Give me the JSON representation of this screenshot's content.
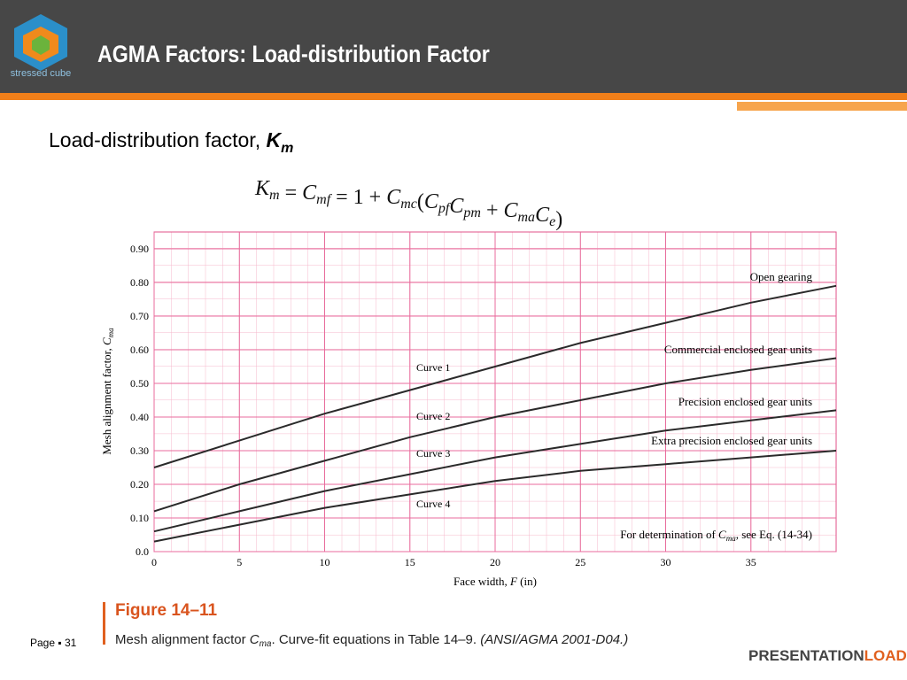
{
  "slide": {
    "title": "AGMA Factors: Load-distribution Factor",
    "logo_text": "stressed cube",
    "heading": {
      "text": "Load-distribution factor, ",
      "symbol": "K",
      "sub": "m"
    },
    "equation": [
      {
        "text": "K",
        "sub": "m"
      },
      {
        "text": " = "
      },
      {
        "text": "C",
        "sub": "mf"
      },
      {
        "text": " = 1 + "
      },
      {
        "text": "C",
        "sub": "mc"
      },
      {
        "text": "("
      },
      {
        "text": "C",
        "sub": "pf"
      },
      {
        "text": "C",
        "sub": "pm"
      },
      {
        "text": " + "
      },
      {
        "text": "C",
        "sub": "ma"
      },
      {
        "text": "C",
        "sub": "e"
      },
      {
        "text": ")"
      }
    ],
    "figure_label": "Figure 14–11",
    "caption": {
      "prefix": "Mesh alignment factor ",
      "symbol": "C",
      "sub": "ma",
      "suffix": ". Curve-fit equations in Table 14–9. ",
      "source": "(ANSI/AGMA 2001-D04.)"
    },
    "page": "Page ▪ 31",
    "brand": {
      "first": "PRESENTATION",
      "second": "LOAD"
    }
  },
  "chart_data": {
    "type": "line",
    "x_label": {
      "text": "Face width, ",
      "symbol": "F",
      "suffix": " (in)"
    },
    "y_label": {
      "text": "Mesh alignment factor, ",
      "symbol": "C",
      "sub": "ma"
    },
    "x": [
      0,
      5,
      10,
      15,
      20,
      25,
      30,
      35,
      40
    ],
    "xlim": [
      0,
      40
    ],
    "xticks": [
      0,
      5,
      10,
      15,
      20,
      25,
      30,
      35
    ],
    "ylim": [
      0,
      0.95
    ],
    "yticks": [
      {
        "value": 0,
        "label": "0.0"
      },
      {
        "value": 0.1,
        "label": "0.10"
      },
      {
        "value": 0.2,
        "label": "0.20"
      },
      {
        "value": 0.3,
        "label": "0.30"
      },
      {
        "value": 0.4,
        "label": "0.40"
      },
      {
        "value": 0.5,
        "label": "0.50"
      },
      {
        "value": 0.6,
        "label": "0.60"
      },
      {
        "value": 0.7,
        "label": "0.70"
      },
      {
        "value": 0.8,
        "label": "0.80"
      },
      {
        "value": 0.9,
        "label": "0.90"
      }
    ],
    "grid": true,
    "series": [
      {
        "name": "Curve 1",
        "color": "#2a2a2a",
        "values": [
          0.25,
          0.33,
          0.41,
          0.48,
          0.55,
          0.62,
          0.68,
          0.74,
          0.79
        ]
      },
      {
        "name": "Curve 2",
        "color": "#2a2a2a",
        "values": [
          0.12,
          0.2,
          0.27,
          0.34,
          0.4,
          0.45,
          0.5,
          0.54,
          0.575
        ]
      },
      {
        "name": "Curve 3",
        "color": "#2a2a2a",
        "values": [
          0.06,
          0.12,
          0.18,
          0.23,
          0.28,
          0.32,
          0.36,
          0.39,
          0.42
        ]
      },
      {
        "name": "Curve 4",
        "color": "#2a2a2a",
        "values": [
          0.03,
          0.08,
          0.13,
          0.17,
          0.21,
          0.24,
          0.26,
          0.28,
          0.3
        ]
      }
    ],
    "annotations": [
      "Open gearing",
      "Commercial enclosed gear units",
      "Precision enclosed gear units",
      "Extra precision enclosed gear units"
    ],
    "note": {
      "prefix": "For determination of ",
      "symbol": "C",
      "sub": "ma",
      "suffix": ", see Eq. (14-34)"
    }
  }
}
